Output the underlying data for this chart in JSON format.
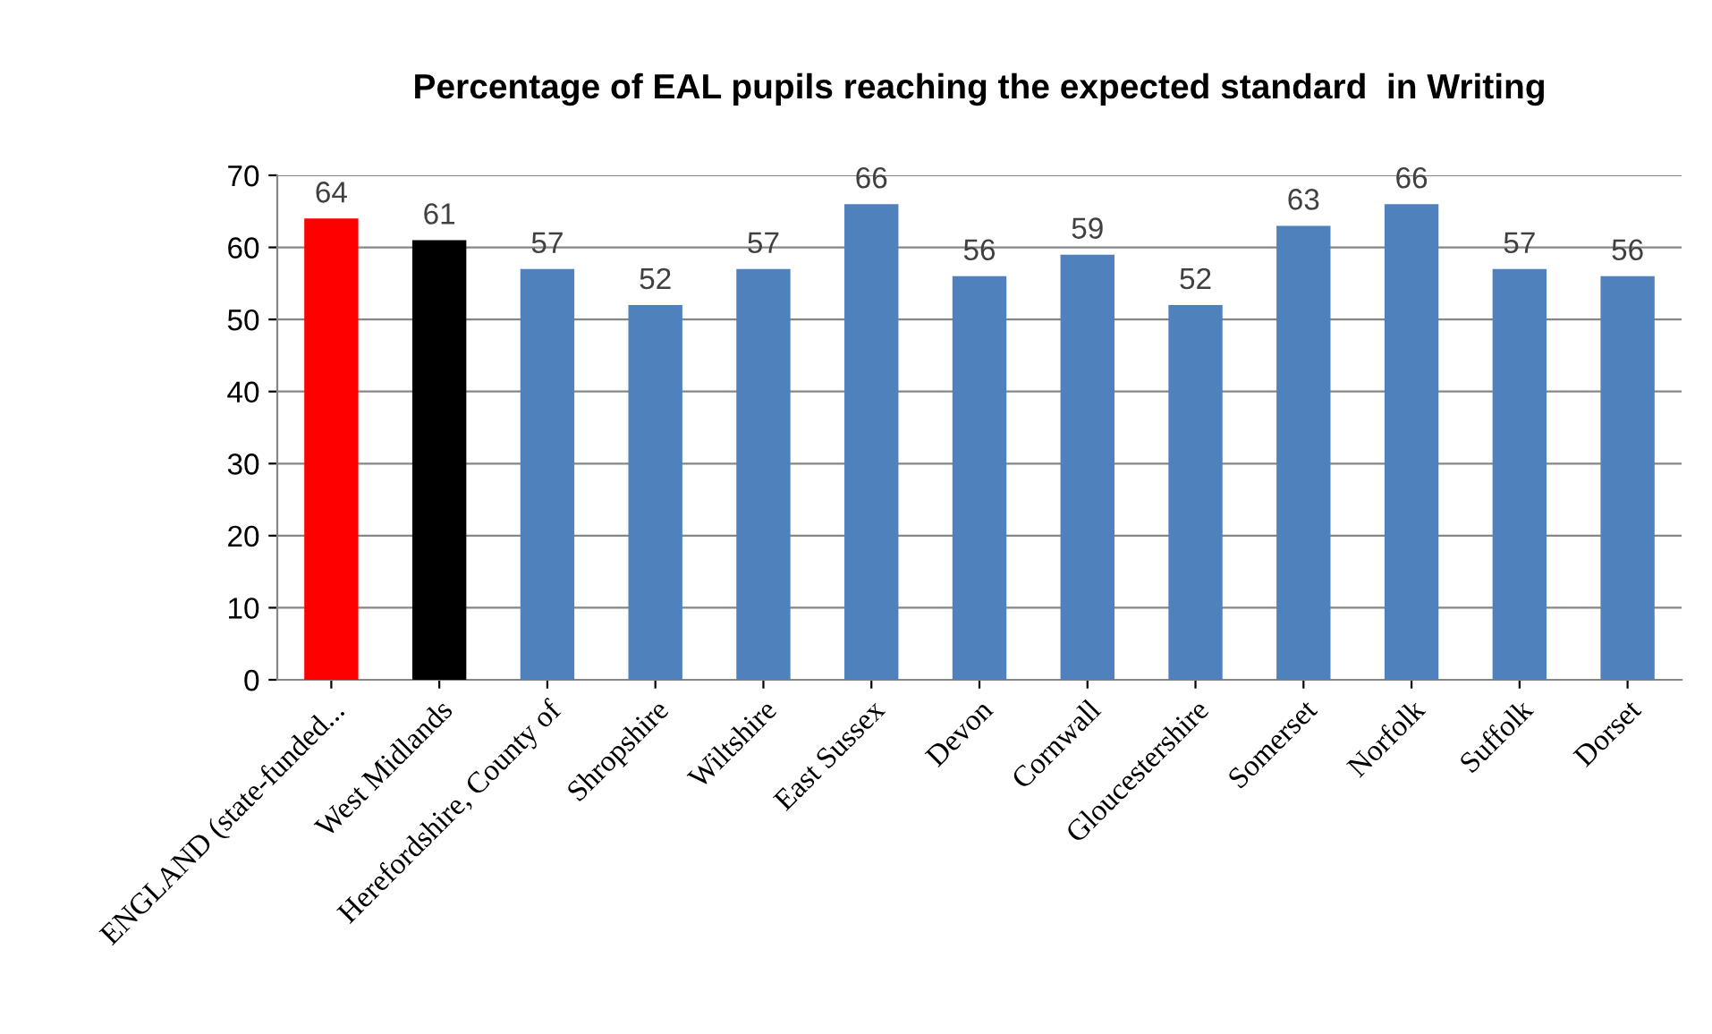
{
  "chart_data": {
    "type": "bar",
    "title": "Percentage of EAL pupils reaching the expected standard  in Writing",
    "categories": [
      "ENGLAND (state-funded...",
      "West Midlands",
      "Herefordshire, County of",
      "Shropshire",
      "Wiltshire",
      "East Sussex",
      "Devon",
      "Cornwall",
      "Gloucestershire",
      "Somerset",
      "Norfolk",
      "Suffolk",
      "Dorset"
    ],
    "values": [
      64,
      61,
      57,
      52,
      57,
      66,
      56,
      59,
      52,
      63,
      66,
      57,
      56
    ],
    "colors": [
      "#ff0000",
      "#000000",
      "#4f81bd",
      "#4f81bd",
      "#4f81bd",
      "#4f81bd",
      "#4f81bd",
      "#4f81bd",
      "#4f81bd",
      "#4f81bd",
      "#4f81bd",
      "#4f81bd",
      "#4f81bd"
    ],
    "ylim": [
      0,
      70
    ],
    "yticks": [
      0,
      10,
      20,
      30,
      40,
      50,
      60,
      70
    ],
    "grid": "y",
    "data_labels": true
  }
}
